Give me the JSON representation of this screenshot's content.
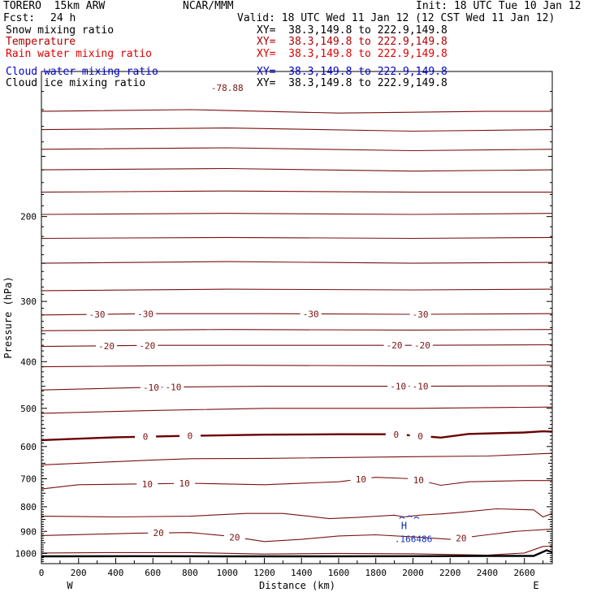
{
  "header": {
    "model": "TORERO  15km ARW",
    "org": "NCAR/MMM",
    "init": "Init: 18 UTC Tue 10 Jan 12",
    "fcst_label": "Fcst:",
    "fcst_value": "24 h",
    "valid": "Valid: 18 UTC Wed 11 Jan 12 (12 CST Wed 11 Jan 12)"
  },
  "fields": [
    {
      "name": "Snow mixing ratio",
      "xy": "XY=  38.3,149.8 to 222.9,149.8",
      "color": "#000000"
    },
    {
      "name": "Temperature",
      "xy": "XY=  38.3,149.8 to 222.9,149.8",
      "color": "#b00000"
    },
    {
      "name": "Rain water mixing ratio",
      "xy": "XY=  38.3,149.8 to 222.9,149.8",
      "color": "#e00000"
    },
    {
      "name": "Cloud water mixing ratio",
      "xy": "XY=  38.3,149.8 to 222.9,149.8",
      "color": "#0000cc"
    },
    {
      "name": "Cloud ice mixing ratio",
      "xy": "XY=  38.3,149.8 to 222.9,149.8",
      "color": "#000000"
    }
  ],
  "colors": {
    "temperature": "#7a1010",
    "zero_isotherm": "#6a0000",
    "cloud_water": "#1030c0",
    "terrain": "#000000"
  },
  "chart_data": {
    "type": "line",
    "xlabel": "Distance (km)",
    "ylabel": "Pressure (hPa)",
    "xlim": [
      0,
      2750
    ],
    "ylim": [
      1050,
      100
    ],
    "y_scale": "log",
    "xticks": [
      0,
      200,
      400,
      600,
      800,
      1000,
      1200,
      1400,
      1600,
      1800,
      2000,
      2200,
      2400,
      2600
    ],
    "yticks": [
      200,
      300,
      400,
      500,
      600,
      700,
      800,
      900,
      1000
    ],
    "x_end_labels": {
      "left": "W",
      "right": "E"
    },
    "isotherm_interval": 5,
    "isotherms": [
      {
        "label": "",
        "points": [
          [
            0,
            121
          ],
          [
            800,
            120
          ],
          [
            1600,
            122
          ],
          [
            2400,
            121
          ],
          [
            2750,
            121
          ]
        ],
        "labels_at": []
      },
      {
        "label": "",
        "points": [
          [
            0,
            132
          ],
          [
            1000,
            131
          ],
          [
            2000,
            133
          ],
          [
            2750,
            132
          ]
        ],
        "labels_at": []
      },
      {
        "label": "",
        "points": [
          [
            0,
            145
          ],
          [
            1000,
            144
          ],
          [
            2000,
            146
          ],
          [
            2750,
            145
          ]
        ],
        "labels_at": []
      },
      {
        "label": "",
        "points": [
          [
            0,
            160
          ],
          [
            1000,
            159
          ],
          [
            2000,
            161
          ],
          [
            2750,
            160
          ]
        ],
        "labels_at": []
      },
      {
        "label": "",
        "points": [
          [
            0,
            178
          ],
          [
            1000,
            177
          ],
          [
            2000,
            178
          ],
          [
            2750,
            178
          ]
        ],
        "labels_at": []
      },
      {
        "label": "",
        "points": [
          [
            0,
            198
          ],
          [
            1000,
            197
          ],
          [
            2000,
            198
          ],
          [
            2750,
            197
          ]
        ],
        "labels_at": []
      },
      {
        "label": "",
        "points": [
          [
            0,
            222
          ],
          [
            1000,
            221
          ],
          [
            2000,
            222
          ],
          [
            2750,
            221
          ]
        ],
        "labels_at": []
      },
      {
        "label": "",
        "points": [
          [
            0,
            250
          ],
          [
            1000,
            248
          ],
          [
            2000,
            250
          ],
          [
            2750,
            249
          ]
        ],
        "labels_at": []
      },
      {
        "label": "",
        "points": [
          [
            0,
            285
          ],
          [
            1000,
            283
          ],
          [
            2000,
            284
          ],
          [
            2750,
            283
          ]
        ],
        "labels_at": []
      },
      {
        "label": "-30",
        "points": [
          [
            0,
            320
          ],
          [
            600,
            318
          ],
          [
            1200,
            318
          ],
          [
            2000,
            319
          ],
          [
            2750,
            318
          ]
        ],
        "labels_at": [
          300,
          560,
          1450,
          2040
        ]
      },
      {
        "label": "",
        "points": [
          [
            0,
            345
          ],
          [
            1000,
            343
          ],
          [
            2000,
            344
          ],
          [
            2750,
            343
          ]
        ],
        "labels_at": []
      },
      {
        "label": "-20",
        "points": [
          [
            0,
            372
          ],
          [
            600,
            370
          ],
          [
            1200,
            370
          ],
          [
            2000,
            370
          ],
          [
            2750,
            369
          ]
        ],
        "labels_at": [
          350,
          570,
          1900,
          2050
        ]
      },
      {
        "label": "",
        "points": [
          [
            0,
            410
          ],
          [
            1000,
            407
          ],
          [
            2000,
            408
          ],
          [
            2750,
            407
          ]
        ],
        "labels_at": []
      },
      {
        "label": "-10",
        "points": [
          [
            0,
            458
          ],
          [
            600,
            452
          ],
          [
            1200,
            450
          ],
          [
            2000,
            450
          ],
          [
            2750,
            449
          ]
        ],
        "labels_at": [
          590,
          710,
          1920,
          2040
        ]
      },
      {
        "label": "",
        "points": [
          [
            0,
            512
          ],
          [
            600,
            505
          ],
          [
            1200,
            500
          ],
          [
            2000,
            500
          ],
          [
            2750,
            497
          ]
        ],
        "labels_at": []
      },
      {
        "label": "0",
        "points": [
          [
            0,
            582
          ],
          [
            400,
            574
          ],
          [
            800,
            570
          ],
          [
            1200,
            567
          ],
          [
            1600,
            566
          ],
          [
            1900,
            566
          ],
          [
            2050,
            571
          ],
          [
            2150,
            575
          ],
          [
            2300,
            565
          ],
          [
            2600,
            561
          ],
          [
            2700,
            558
          ],
          [
            2750,
            559
          ]
        ],
        "labels_at": [
          560,
          800,
          1910,
          2040
        ]
      },
      {
        "label": "",
        "points": [
          [
            0,
            655
          ],
          [
            400,
            645
          ],
          [
            600,
            640
          ],
          [
            800,
            636
          ],
          [
            1200,
            635
          ],
          [
            2000,
            630
          ],
          [
            2400,
            628
          ],
          [
            2700,
            621
          ],
          [
            2750,
            620
          ]
        ],
        "labels_at": []
      },
      {
        "label": "10",
        "points": [
          [
            0,
            735
          ],
          [
            200,
            720
          ],
          [
            600,
            717
          ],
          [
            800,
            715
          ],
          [
            1200,
            720
          ],
          [
            1600,
            710
          ],
          [
            1800,
            695
          ],
          [
            2000,
            700
          ],
          [
            2150,
            722
          ],
          [
            2300,
            710
          ],
          [
            2600,
            706
          ],
          [
            2750,
            706
          ]
        ],
        "labels_at": [
          570,
          770,
          1720,
          2030
        ]
      },
      {
        "label": "",
        "points": [
          [
            0,
            837
          ],
          [
            400,
            840
          ],
          [
            800,
            837
          ],
          [
            1100,
            826
          ],
          [
            1300,
            826
          ],
          [
            1450,
            838
          ],
          [
            1550,
            847
          ],
          [
            1700,
            842
          ],
          [
            1900,
            833
          ],
          [
            1950,
            840
          ],
          [
            2050,
            832
          ],
          [
            2150,
            828
          ],
          [
            2250,
            822
          ],
          [
            2450,
            808
          ],
          [
            2650,
            812
          ],
          [
            2700,
            840
          ],
          [
            2750,
            826
          ]
        ],
        "labels_at": []
      },
      {
        "label": "20",
        "points": [
          [
            0,
            918
          ],
          [
            300,
            912
          ],
          [
            500,
            908
          ],
          [
            800,
            905
          ],
          [
            1000,
            920
          ],
          [
            1200,
            945
          ],
          [
            1400,
            935
          ],
          [
            1600,
            920
          ],
          [
            1800,
            915
          ],
          [
            2000,
            924
          ],
          [
            2200,
            935
          ],
          [
            2400,
            915
          ],
          [
            2550,
            900
          ],
          [
            2750,
            890
          ]
        ],
        "labels_at": [
          630,
          1040,
          2260
        ]
      },
      {
        "label": "",
        "points": [
          [
            0,
            998
          ],
          [
            400,
            996
          ],
          [
            800,
            996
          ],
          [
            1200,
            1003
          ],
          [
            1600,
            1000
          ],
          [
            2000,
            1002
          ],
          [
            2400,
            1008
          ],
          [
            2600,
            998
          ],
          [
            2700,
            967
          ],
          [
            2750,
            966
          ]
        ],
        "labels_at": []
      }
    ],
    "terrain": {
      "points": [
        [
          0,
          1014
        ],
        [
          500,
          1013
        ],
        [
          1000,
          1014
        ],
        [
          1500,
          1014
        ],
        [
          2000,
          1013
        ],
        [
          2400,
          1012
        ],
        [
          2650,
          1012
        ],
        [
          2720,
          985
        ],
        [
          2750,
          995
        ]
      ]
    },
    "cloud_water_max": {
      "x": 1980,
      "p": 877,
      "marker": "H",
      "value": ".166486"
    },
    "top_labels": [
      {
        "text": "-78.88",
        "x": 1000,
        "p": 108
      }
    ]
  }
}
